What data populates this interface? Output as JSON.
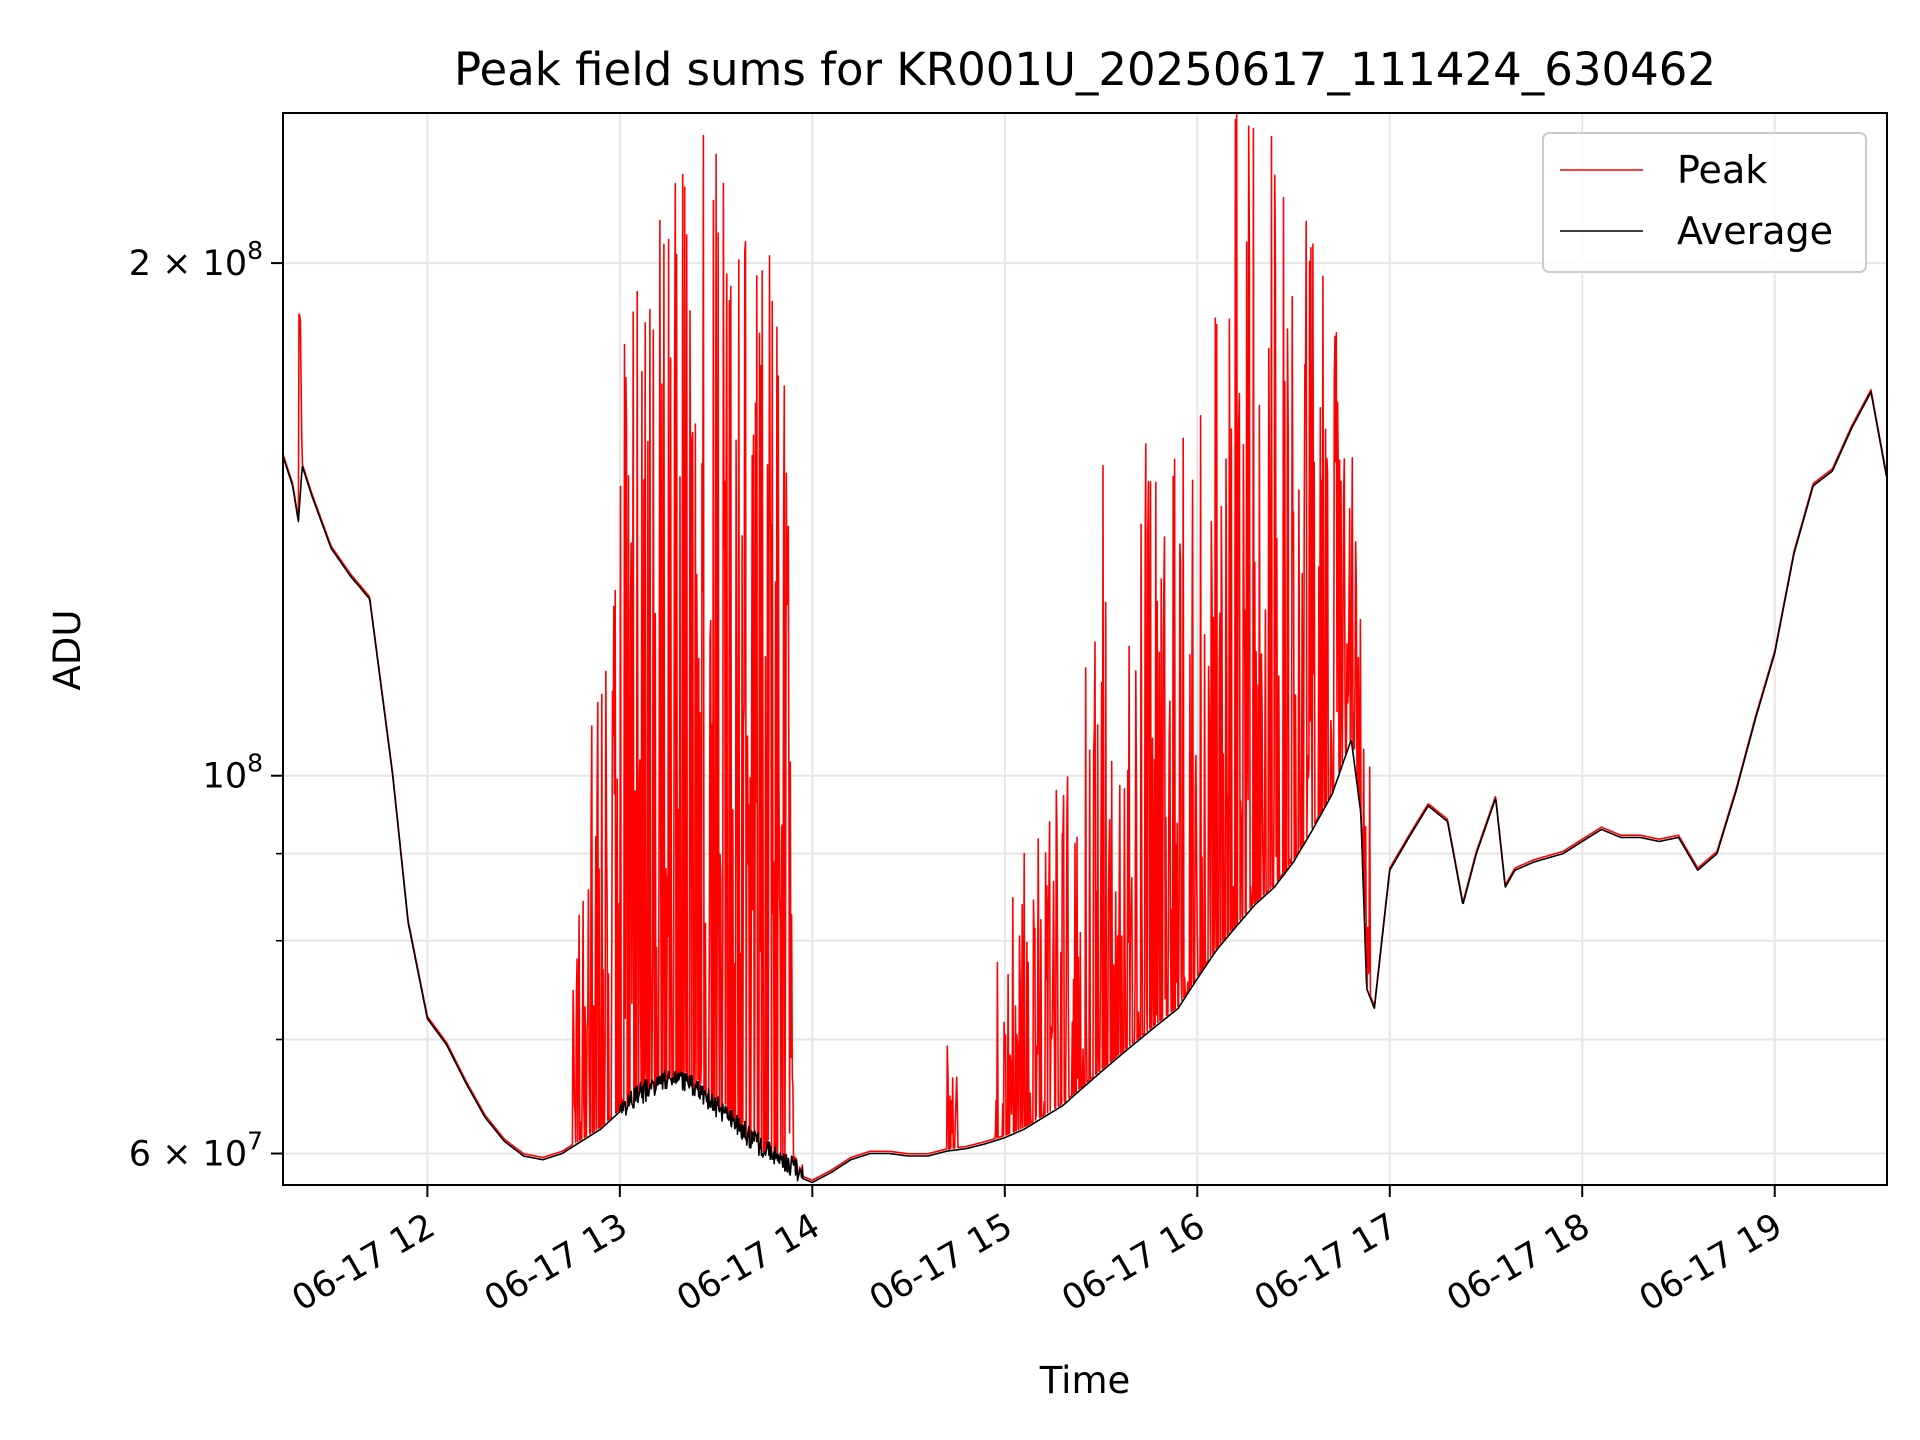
{
  "chart_data": {
    "type": "line",
    "title": "Peak field sums for KR001U_20250617_111424_630462",
    "xlabel": "Time",
    "ylabel": "ADU",
    "x_range": [
      "06-17 11:15",
      "06-17 19:35"
    ],
    "ylim": [
      57500000,
      245000000
    ],
    "y_scale": "log",
    "grid": true,
    "legend": {
      "position": "top-right",
      "entries": [
        "Peak",
        "Average"
      ]
    },
    "x_ticks": [
      "06-17 12",
      "06-17 13",
      "06-17 14",
      "06-17 15",
      "06-17 16",
      "06-17 17",
      "06-17 18",
      "06-17 19"
    ],
    "x_tick_hours": [
      12,
      13,
      14,
      15,
      16,
      17,
      18,
      19
    ],
    "y_ticks": [
      {
        "value": 60000000,
        "base": "6 × 10",
        "exp": "7"
      },
      {
        "value": 100000000,
        "base": "10",
        "exp": "8"
      },
      {
        "value": 200000000,
        "base": "2 × 10",
        "exp": "8"
      }
    ],
    "y_minor_ticks": [
      70000000,
      80000000,
      90000000
    ],
    "colors": {
      "peak": "#ff0000",
      "average": "#000000"
    },
    "series": [
      {
        "name": "Average",
        "x": [
          11.25,
          11.3,
          11.33,
          11.35,
          11.4,
          11.5,
          11.6,
          11.7,
          11.75,
          11.82,
          11.9,
          12.0,
          12.1,
          12.2,
          12.3,
          12.4,
          12.5,
          12.6,
          12.7,
          12.8,
          12.9,
          13.0,
          13.1,
          13.2,
          13.3,
          13.4,
          13.5,
          13.6,
          13.7,
          13.8,
          13.9,
          13.95,
          14.0,
          14.1,
          14.2,
          14.3,
          14.4,
          14.5,
          14.6,
          14.7,
          14.8,
          14.9,
          15.0,
          15.1,
          15.2,
          15.3,
          15.4,
          15.5,
          15.6,
          15.7,
          15.8,
          15.9,
          16.0,
          16.1,
          16.2,
          16.3,
          16.4,
          16.5,
          16.6,
          16.7,
          16.8,
          16.85,
          16.88,
          16.92,
          17.0,
          17.1,
          17.2,
          17.3,
          17.38,
          17.45,
          17.55,
          17.6,
          17.65,
          17.75,
          17.9,
          18.0,
          18.1,
          18.2,
          18.3,
          18.4,
          18.5,
          18.6,
          18.7,
          18.8,
          18.9,
          19.0,
          19.1,
          19.2,
          19.3,
          19.4,
          19.5,
          19.58
        ],
        "y": [
          154000000,
          148000000,
          141000000,
          152000000,
          146000000,
          136000000,
          131000000,
          127000000,
          115000000,
          100000000,
          82000000,
          72000000,
          69500000,
          66000000,
          63000000,
          61000000,
          59800000,
          59500000,
          60000000,
          61000000,
          62000000,
          63500000,
          65000000,
          66000000,
          66500000,
          65500000,
          64000000,
          62500000,
          61000000,
          60000000,
          59000000,
          58000000,
          57700000,
          58500000,
          59500000,
          60000000,
          60000000,
          59800000,
          59800000,
          60200000,
          60400000,
          60800000,
          61300000,
          62000000,
          63000000,
          64000000,
          65500000,
          67000000,
          68500000,
          70000000,
          71500000,
          73000000,
          76000000,
          79000000,
          81500000,
          84000000,
          86000000,
          89000000,
          93000000,
          97500000,
          105000000,
          95000000,
          75000000,
          73000000,
          88000000,
          92000000,
          96000000,
          94000000,
          84000000,
          90000000,
          97000000,
          86000000,
          88000000,
          89000000,
          90000000,
          91500000,
          93000000,
          92000000,
          92000000,
          91500000,
          92000000,
          88000000,
          90000000,
          98000000,
          108000000,
          118000000,
          135000000,
          148000000,
          151000000,
          160000000,
          168000000,
          150000000
        ]
      },
      {
        "name": "Peak",
        "baseline_follows": "Average",
        "x": [
          11.33,
          11.34,
          11.35,
          12.75,
          12.8,
          12.9,
          13.0,
          13.1,
          13.2,
          13.3,
          13.35,
          13.4,
          13.5,
          13.55,
          13.6,
          13.7,
          13.8,
          13.9,
          14.2,
          14.5,
          14.8,
          15.0,
          15.1,
          15.2,
          15.3,
          15.4,
          15.5,
          15.6,
          15.7,
          15.8,
          15.9,
          16.0,
          16.1,
          16.2,
          16.3,
          16.4,
          16.5,
          16.6,
          16.7,
          16.8,
          16.9,
          17.38
        ],
        "y": [
          187000000,
          186000000,
          150000000,
          77000000,
          87000000,
          150000000,
          190000000,
          205000000,
          220000000,
          238000000,
          230000000,
          245000000,
          240000000,
          245000000,
          230000000,
          212000000,
          205000000,
          200000000,
          68000000,
          77000000,
          66000000,
          87000000,
          90000000,
          95000000,
          100000000,
          110000000,
          158000000,
          120000000,
          165000000,
          150000000,
          160000000,
          170000000,
          195000000,
          245000000,
          240000000,
          245000000,
          230000000,
          210000000,
          190000000,
          165000000,
          118000000,
          103000000
        ],
        "spike_regions": [
          [
            12.75,
            13.9
          ],
          [
            14.7,
            14.76
          ],
          [
            14.95,
            16.9
          ]
        ]
      }
    ]
  }
}
